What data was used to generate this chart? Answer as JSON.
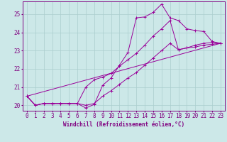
{
  "xlabel": "Windchill (Refroidissement éolien,°C)",
  "background_color": "#cce8e8",
  "line_color": "#990099",
  "x_ticks": [
    0,
    1,
    2,
    3,
    4,
    5,
    6,
    7,
    8,
    9,
    10,
    11,
    12,
    13,
    14,
    15,
    16,
    17,
    18,
    19,
    20,
    21,
    22,
    23
  ],
  "y_ticks": [
    20,
    21,
    22,
    23,
    24,
    25
  ],
  "ylim": [
    19.7,
    25.7
  ],
  "xlim": [
    -0.5,
    23.5
  ],
  "line1_x": [
    0,
    1,
    2,
    3,
    4,
    5,
    6,
    7,
    8,
    9,
    10,
    11,
    12,
    13,
    14,
    15,
    16,
    17,
    18,
    19,
    20,
    21,
    22,
    23
  ],
  "line1_y": [
    20.5,
    20.0,
    20.1,
    20.1,
    20.1,
    20.1,
    20.1,
    19.85,
    20.05,
    21.1,
    21.5,
    22.2,
    22.9,
    24.8,
    24.85,
    25.1,
    25.55,
    24.8,
    24.65,
    24.2,
    24.1,
    24.05,
    23.5,
    23.4
  ],
  "line2_x": [
    0,
    1,
    2,
    3,
    4,
    5,
    6,
    7,
    8,
    9,
    10,
    11,
    12,
    13,
    14,
    15,
    16,
    17,
    18,
    19,
    20,
    21,
    22,
    23
  ],
  "line2_y": [
    20.5,
    20.0,
    20.1,
    20.1,
    20.1,
    20.1,
    20.1,
    21.0,
    21.4,
    21.55,
    21.75,
    22.15,
    22.5,
    22.85,
    23.3,
    23.8,
    24.2,
    24.65,
    23.05,
    23.15,
    23.3,
    23.4,
    23.45,
    23.4
  ],
  "line3_x": [
    0,
    1,
    2,
    3,
    4,
    5,
    6,
    7,
    8,
    9,
    10,
    11,
    12,
    13,
    14,
    15,
    16,
    17,
    18,
    19,
    20,
    21,
    22,
    23
  ],
  "line3_y": [
    20.5,
    20.0,
    20.1,
    20.1,
    20.1,
    20.1,
    20.1,
    20.0,
    20.1,
    20.5,
    20.8,
    21.15,
    21.5,
    21.8,
    22.2,
    22.6,
    23.0,
    23.4,
    23.05,
    23.15,
    23.2,
    23.3,
    23.35,
    23.4
  ],
  "line4_x": [
    0,
    23
  ],
  "line4_y": [
    20.5,
    23.4
  ],
  "grid_color": "#aacece",
  "tick_color": "#800080",
  "axis_color": "#800080",
  "fontsize_label": 5.5,
  "fontsize_tick": 5.5
}
